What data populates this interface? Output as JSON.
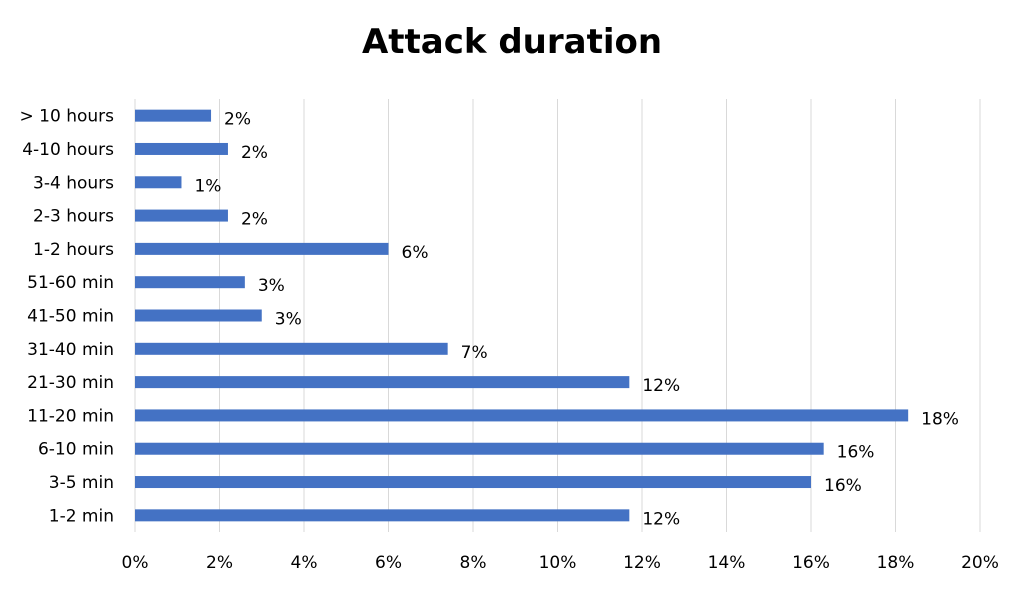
{
  "chart_data": {
    "type": "bar",
    "orientation": "horizontal",
    "title": "Attack duration",
    "categories": [
      "> 10 hours",
      "4-10 hours",
      "3-4 hours",
      "2-3 hours",
      "1-2 hours",
      "51-60 min",
      "41-50 min",
      "31-40 min",
      "21-30 min",
      "11-20 min",
      "6-10 min",
      "3-5 min",
      "1-2 min"
    ],
    "values": [
      1.8,
      2.2,
      1.1,
      2.2,
      6.0,
      2.6,
      3.0,
      7.4,
      11.7,
      18.3,
      16.3,
      16.0,
      11.7
    ],
    "data_labels": [
      "2%",
      "2%",
      "1%",
      "2%",
      "6%",
      "3%",
      "3%",
      "7%",
      "12%",
      "18%",
      "16%",
      "16%",
      "12%"
    ],
    "xlim": [
      0,
      20
    ],
    "x_ticks": [
      0,
      2,
      4,
      6,
      8,
      10,
      12,
      14,
      16,
      18,
      20
    ],
    "x_tick_labels": [
      "0%",
      "2%",
      "4%",
      "6%",
      "8%",
      "10%",
      "12%",
      "14%",
      "16%",
      "18%",
      "20%"
    ],
    "grid": "vertical",
    "legend": "none",
    "bar_color": "#4472C4",
    "grid_color": "#D9D9D9"
  }
}
